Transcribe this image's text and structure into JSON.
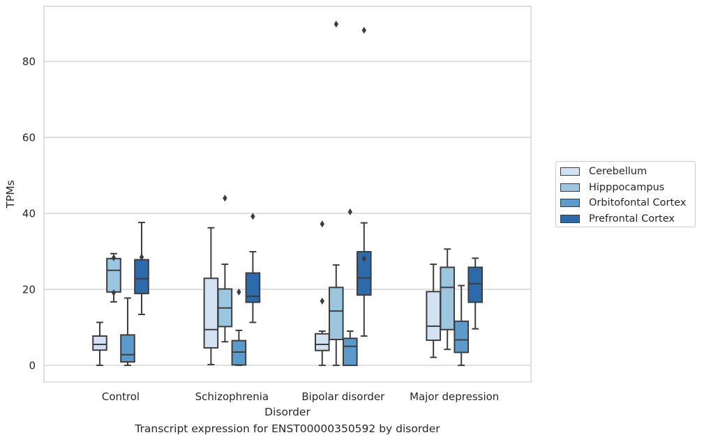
{
  "caption": "Transcript expression for ENST00000350592 by disorder",
  "chart_data": {
    "type": "box",
    "xlabel": "Disorder",
    "ylabel": "TPMs",
    "categories": [
      "Control",
      "Schizophrenia",
      "Bipolar disorder",
      "Major depression"
    ],
    "ylim": [
      -4.4,
      94.5
    ],
    "yticks": [
      0,
      20,
      40,
      60,
      80
    ],
    "grid": "horizontal",
    "legend_position": "right",
    "series": [
      {
        "name": "Cerebellum",
        "color": "#d2e2f2",
        "boxes": [
          {
            "whislo": 0,
            "q1": 4.0,
            "med": 5.5,
            "q3": 7.7,
            "whishi": 11.3,
            "fliers": []
          },
          {
            "whislo": 0.2,
            "q1": 4.6,
            "med": 9.4,
            "q3": 22.9,
            "whishi": 36.2,
            "fliers": []
          },
          {
            "whislo": 0,
            "q1": 3.9,
            "med": 5.5,
            "q3": 8.3,
            "whishi": 9.0,
            "fliers": [
              16.9,
              37.2
            ]
          },
          {
            "whislo": 2.1,
            "q1": 6.6,
            "med": 10.3,
            "q3": 19.4,
            "whishi": 26.6,
            "fliers": []
          }
        ]
      },
      {
        "name": "Hipppocampus",
        "color": "#9ac7df",
        "boxes": [
          {
            "whislo": 16.7,
            "q1": 19.3,
            "med": 25.0,
            "q3": 28.1,
            "whishi": 29.4,
            "fliers": [
              28.3,
              19.1
            ]
          },
          {
            "whislo": 6.2,
            "q1": 10.2,
            "med": 15.1,
            "q3": 20.1,
            "whishi": 26.6,
            "fliers": [
              44.0
            ]
          },
          {
            "whislo": 0,
            "q1": 6.8,
            "med": 14.3,
            "q3": 20.5,
            "whishi": 26.4,
            "fliers": [
              89.8
            ]
          },
          {
            "whislo": 4.2,
            "q1": 9.4,
            "med": 20.5,
            "q3": 25.8,
            "whishi": 30.6,
            "fliers": []
          }
        ]
      },
      {
        "name": "Orbitofontal Cortex",
        "color": "#5b9bcb",
        "boxes": [
          {
            "whislo": 0,
            "q1": 0.9,
            "med": 2.8,
            "q3": 8.0,
            "whishi": 17.7,
            "fliers": []
          },
          {
            "whislo": 0,
            "q1": 0.1,
            "med": 3.5,
            "q3": 6.5,
            "whishi": 9.2,
            "fliers": [
              19.3
            ]
          },
          {
            "whislo": 0,
            "q1": 0,
            "med": 5.0,
            "q3": 7.1,
            "whishi": 9.0,
            "fliers": [
              40.4
            ]
          },
          {
            "whislo": 0,
            "q1": 3.4,
            "med": 6.7,
            "q3": 11.6,
            "whishi": 21.0,
            "fliers": []
          }
        ]
      },
      {
        "name": "Prefrontal Cortex",
        "color": "#2b6bac",
        "boxes": [
          {
            "whislo": 13.4,
            "q1": 18.9,
            "med": 22.8,
            "q3": 27.8,
            "whishi": 37.6,
            "fliers": [
              28.5
            ]
          },
          {
            "whislo": 11.3,
            "q1": 16.6,
            "med": 18.2,
            "q3": 24.3,
            "whishi": 29.9,
            "fliers": [
              39.2
            ]
          },
          {
            "whislo": 7.7,
            "q1": 18.5,
            "med": 23.0,
            "q3": 29.9,
            "whishi": 37.5,
            "fliers": [
              28.1,
              88.2
            ]
          },
          {
            "whislo": 9.6,
            "q1": 16.6,
            "med": 21.5,
            "q3": 25.8,
            "whishi": 28.2,
            "fliers": []
          }
        ]
      }
    ]
  }
}
